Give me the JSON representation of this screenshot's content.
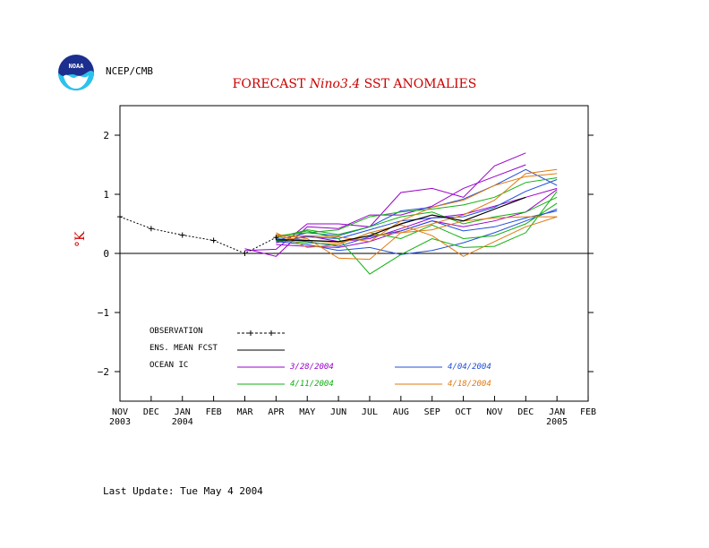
{
  "header": {
    "org": "NCEP/CMB",
    "title_prefix": "FORECAST ",
    "title_italic": "Nino3.4",
    "title_suffix": " SST ANOMALIES",
    "logo_text": "NOAA"
  },
  "footer": {
    "last_update": "Last Update: Tue May 4 2004"
  },
  "colors": {
    "title": "#cc0000",
    "ic_3_28": "#9900cc",
    "ic_4_04": "#1f4fd8",
    "ic_4_11": "#10b010",
    "ic_4_18": "#e07a10"
  },
  "chart_data": {
    "type": "line",
    "title": "FORECAST Nino3.4 SST ANOMALIES",
    "ylabel": "°K",
    "ylim": [
      -2.5,
      2.5
    ],
    "yticks": [
      -2,
      -1,
      0,
      1,
      2
    ],
    "ytick_labels": [
      "−2",
      "−1",
      "0",
      "1",
      "2"
    ],
    "xticks": [
      {
        "month": "NOV",
        "year": "2003"
      },
      {
        "month": "DEC",
        "year": ""
      },
      {
        "month": "JAN",
        "year": "2004"
      },
      {
        "month": "FEB",
        "year": ""
      },
      {
        "month": "MAR",
        "year": ""
      },
      {
        "month": "APR",
        "year": ""
      },
      {
        "month": "MAY",
        "year": ""
      },
      {
        "month": "JUN",
        "year": ""
      },
      {
        "month": "JUL",
        "year": ""
      },
      {
        "month": "AUG",
        "year": ""
      },
      {
        "month": "SEP",
        "year": ""
      },
      {
        "month": "OCT",
        "year": ""
      },
      {
        "month": "NOV",
        "year": ""
      },
      {
        "month": "DEC",
        "year": ""
      },
      {
        "month": "JAN",
        "year": "2005"
      },
      {
        "month": "FEB",
        "year": ""
      }
    ],
    "legend": {
      "observation": "OBSERVATION",
      "ens_mean": "ENS. MEAN FCST",
      "ocean_ic": "OCEAN IC",
      "ic_labels": [
        "3/28/2004",
        "4/04/2004",
        "4/11/2004",
        "4/18/2004"
      ]
    },
    "observation": [
      [
        0,
        0.62
      ],
      [
        1,
        0.42
      ],
      [
        2,
        0.31
      ],
      [
        3,
        0.22
      ],
      [
        4,
        0.0
      ],
      [
        5,
        0.27
      ]
    ],
    "ens_mean": [
      [
        5,
        0.23
      ],
      [
        6,
        0.22
      ],
      [
        7,
        0.2
      ],
      [
        8,
        0.3
      ],
      [
        9,
        0.5
      ],
      [
        10,
        0.65
      ],
      [
        11,
        0.55
      ],
      [
        12,
        0.75
      ],
      [
        13,
        0.95
      ]
    ],
    "members": [
      {
        "group": 0,
        "points": [
          [
            4,
            0.05
          ],
          [
            5,
            0.07
          ],
          [
            6,
            0.5
          ],
          [
            7,
            0.5
          ],
          [
            8,
            0.45
          ],
          [
            9,
            1.03
          ],
          [
            10,
            1.1
          ],
          [
            11,
            0.95
          ],
          [
            12,
            1.48
          ],
          [
            13,
            1.7
          ]
        ]
      },
      {
        "group": 0,
        "points": [
          [
            4,
            0.08
          ],
          [
            5,
            -0.05
          ],
          [
            6,
            0.45
          ],
          [
            7,
            0.42
          ],
          [
            8,
            0.65
          ],
          [
            9,
            0.65
          ],
          [
            10,
            0.8
          ],
          [
            11,
            1.1
          ],
          [
            12,
            1.3
          ],
          [
            13,
            1.5
          ]
        ]
      },
      {
        "group": 0,
        "points": [
          [
            5,
            0.15
          ],
          [
            6,
            0.12
          ],
          [
            7,
            0.1
          ],
          [
            8,
            0.2
          ],
          [
            9,
            0.38
          ],
          [
            10,
            0.55
          ],
          [
            11,
            0.45
          ],
          [
            12,
            0.55
          ],
          [
            13,
            0.7
          ],
          [
            14,
            1.08
          ]
        ]
      },
      {
        "group": 0,
        "points": [
          [
            5,
            0.18
          ],
          [
            6,
            0.3
          ],
          [
            7,
            0.2
          ],
          [
            8,
            0.25
          ],
          [
            9,
            0.42
          ],
          [
            10,
            0.6
          ],
          [
            11,
            0.66
          ],
          [
            12,
            0.8
          ],
          [
            13,
            0.95
          ],
          [
            14,
            1.1
          ]
        ]
      },
      {
        "group": 1,
        "points": [
          [
            5,
            0.22
          ],
          [
            6,
            0.35
          ],
          [
            7,
            0.3
          ],
          [
            8,
            0.45
          ],
          [
            9,
            0.72
          ],
          [
            10,
            0.78
          ],
          [
            11,
            0.92
          ],
          [
            12,
            1.15
          ],
          [
            13,
            1.42
          ],
          [
            14,
            1.15
          ]
        ]
      },
      {
        "group": 1,
        "points": [
          [
            5,
            0.2
          ],
          [
            6,
            0.15
          ],
          [
            7,
            0.05
          ],
          [
            8,
            0.1
          ],
          [
            9,
            -0.02
          ],
          [
            10,
            0.05
          ],
          [
            11,
            0.18
          ],
          [
            12,
            0.35
          ],
          [
            13,
            0.55
          ],
          [
            14,
            0.75
          ]
        ]
      },
      {
        "group": 1,
        "points": [
          [
            5,
            0.25
          ],
          [
            6,
            0.2
          ],
          [
            7,
            0.12
          ],
          [
            8,
            0.28
          ],
          [
            9,
            0.38
          ],
          [
            10,
            0.55
          ],
          [
            11,
            0.38
          ],
          [
            12,
            0.45
          ],
          [
            13,
            0.6
          ],
          [
            14,
            0.72
          ]
        ]
      },
      {
        "group": 1,
        "points": [
          [
            5,
            0.2
          ],
          [
            6,
            0.28
          ],
          [
            7,
            0.25
          ],
          [
            8,
            0.4
          ],
          [
            9,
            0.55
          ],
          [
            10,
            0.6
          ],
          [
            11,
            0.62
          ],
          [
            12,
            0.78
          ],
          [
            13,
            1.05
          ],
          [
            14,
            1.25
          ]
        ]
      },
      {
        "group": 2,
        "points": [
          [
            5,
            0.28
          ],
          [
            6,
            0.38
          ],
          [
            7,
            0.25
          ],
          [
            8,
            -0.35
          ],
          [
            9,
            -0.02
          ],
          [
            10,
            0.25
          ],
          [
            11,
            0.1
          ],
          [
            12,
            0.12
          ],
          [
            13,
            0.35
          ],
          [
            14,
            1.05
          ]
        ]
      },
      {
        "group": 2,
        "points": [
          [
            5,
            0.3
          ],
          [
            6,
            0.35
          ],
          [
            7,
            0.4
          ],
          [
            8,
            0.62
          ],
          [
            9,
            0.7
          ],
          [
            10,
            0.75
          ],
          [
            11,
            0.82
          ],
          [
            12,
            0.95
          ],
          [
            13,
            1.2
          ],
          [
            14,
            1.28
          ]
        ]
      },
      {
        "group": 2,
        "points": [
          [
            5,
            0.22
          ],
          [
            6,
            0.18
          ],
          [
            7,
            0.15
          ],
          [
            8,
            0.35
          ],
          [
            9,
            0.25
          ],
          [
            10,
            0.48
          ],
          [
            11,
            0.25
          ],
          [
            12,
            0.3
          ],
          [
            13,
            0.5
          ],
          [
            14,
            0.85
          ]
        ]
      },
      {
        "group": 2,
        "points": [
          [
            5,
            0.26
          ],
          [
            6,
            0.4
          ],
          [
            7,
            0.32
          ],
          [
            8,
            0.45
          ],
          [
            9,
            0.62
          ],
          [
            10,
            0.7
          ],
          [
            11,
            0.5
          ],
          [
            12,
            0.62
          ],
          [
            13,
            0.7
          ],
          [
            14,
            0.95
          ]
        ]
      },
      {
        "group": 3,
        "points": [
          [
            5,
            0.32
          ],
          [
            6,
            0.25
          ],
          [
            7,
            -0.08
          ],
          [
            8,
            -0.1
          ],
          [
            9,
            0.35
          ],
          [
            10,
            0.5
          ],
          [
            11,
            0.65
          ],
          [
            12,
            0.9
          ],
          [
            13,
            1.35
          ],
          [
            14,
            1.42
          ]
        ]
      },
      {
        "group": 3,
        "points": [
          [
            5,
            0.35
          ],
          [
            6,
            0.1
          ],
          [
            7,
            0.15
          ],
          [
            8,
            0.35
          ],
          [
            9,
            0.48
          ],
          [
            10,
            0.3
          ],
          [
            11,
            -0.05
          ],
          [
            12,
            0.2
          ],
          [
            13,
            0.45
          ],
          [
            14,
            0.62
          ]
        ]
      },
      {
        "group": 3,
        "points": [
          [
            5,
            0.3
          ],
          [
            6,
            0.3
          ],
          [
            7,
            0.28
          ],
          [
            8,
            0.2
          ],
          [
            9,
            0.55
          ],
          [
            10,
            0.78
          ],
          [
            11,
            0.9
          ],
          [
            12,
            1.15
          ],
          [
            13,
            1.3
          ],
          [
            14,
            1.35
          ]
        ]
      },
      {
        "group": 3,
        "points": [
          [
            5,
            0.28
          ],
          [
            6,
            0.22
          ],
          [
            7,
            0.18
          ],
          [
            8,
            0.3
          ],
          [
            9,
            0.35
          ],
          [
            10,
            0.4
          ],
          [
            11,
            0.55
          ],
          [
            12,
            0.6
          ],
          [
            13,
            0.62
          ],
          [
            14,
            0.62
          ]
        ]
      }
    ]
  }
}
